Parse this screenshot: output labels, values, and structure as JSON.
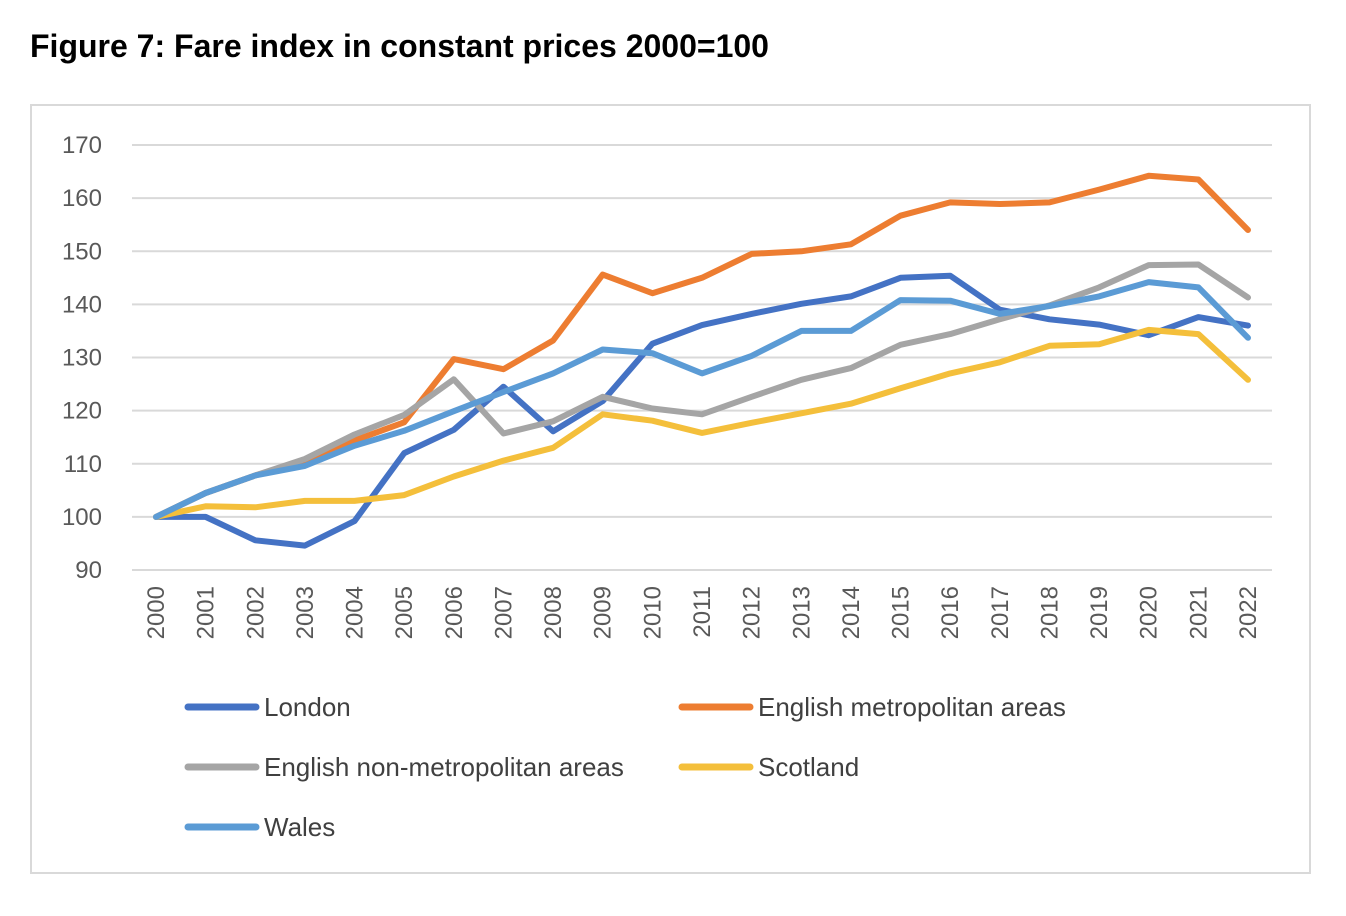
{
  "title": "Figure 7: Fare index in constant prices 2000=100",
  "chart_data": {
    "type": "line",
    "title": "Figure 7: Fare index in constant prices 2000=100",
    "xlabel": "",
    "ylabel": "",
    "ylim": [
      90,
      170
    ],
    "yticks": [
      "90",
      "100",
      "110",
      "120",
      "130",
      "140",
      "150",
      "160",
      "170"
    ],
    "grid": true,
    "legend_position": "bottom",
    "categories": [
      "2000",
      "2001",
      "2002",
      "2003",
      "2004",
      "2005",
      "2006",
      "2007",
      "2008",
      "2009",
      "2010",
      "2011",
      "2012",
      "2013",
      "2014",
      "2015",
      "2016",
      "2017",
      "2018",
      "2019",
      "2020",
      "2021",
      "2022"
    ],
    "series": [
      {
        "name": "London",
        "color": "#4472c4",
        "values": [
          100,
          100,
          95.6,
          94.6,
          99.2,
          112,
          116.4,
          124.5,
          116.1,
          121.8,
          132.6,
          136.1,
          138.2,
          140.1,
          141.5,
          145,
          145.4,
          139,
          137.2,
          136.2,
          134.2,
          137.6,
          136
        ]
      },
      {
        "name": "English metropolitan areas",
        "color": "#ed7d31",
        "values": [
          100,
          104.5,
          107.8,
          110.6,
          114.4,
          117.8,
          129.7,
          127.8,
          133.2,
          145.6,
          142.1,
          145,
          149.5,
          150,
          151.3,
          156.7,
          159.2,
          158.9,
          159.2,
          161.6,
          164.2,
          163.5,
          154
        ]
      },
      {
        "name": "English non-metropolitan areas",
        "color": "#a5a5a5",
        "values": [
          100,
          104.5,
          107.8,
          110.9,
          115.5,
          119.2,
          125.9,
          115.7,
          118,
          122.6,
          120.4,
          119.3,
          122.6,
          125.8,
          128,
          132.4,
          134.4,
          137.2,
          139.8,
          143.2,
          147.4,
          147.5,
          141.3
        ]
      },
      {
        "name": "Scotland",
        "color": "#f4bf3b",
        "values": [
          100,
          102,
          101.8,
          103,
          103,
          104.1,
          107.6,
          110.6,
          113,
          119.3,
          118.1,
          115.8,
          117.7,
          119.5,
          121.3,
          124.2,
          127,
          129.1,
          132.2,
          132.5,
          135.2,
          134.4,
          125.8
        ]
      },
      {
        "name": "Wales",
        "color": "#5b9bd5",
        "values": [
          100,
          104.5,
          107.8,
          109.6,
          113.4,
          116.2,
          119.9,
          123.5,
          127,
          131.5,
          130.8,
          127,
          130.3,
          135,
          135,
          140.8,
          140.7,
          138.2,
          139.7,
          141.5,
          144.2,
          143.2,
          133.7
        ]
      }
    ]
  }
}
